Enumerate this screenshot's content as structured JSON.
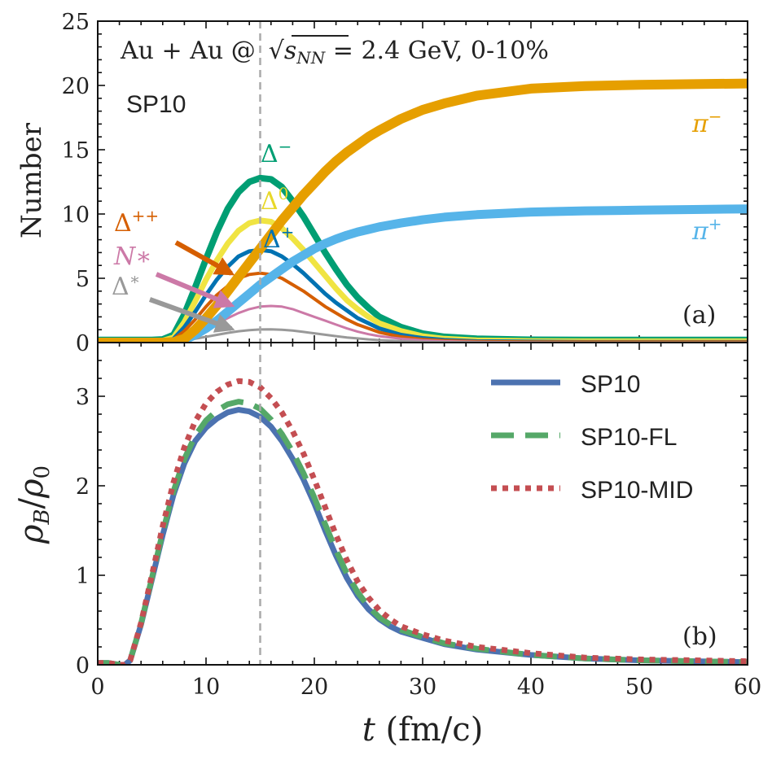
{
  "chart_data": [
    {
      "type": "line",
      "panel_label": "(a)",
      "title": "Au + Au @√sNN = 2.4 GeV, 0-10%",
      "title_lhs": "Au + Au @",
      "title_sqrt_var": "s",
      "title_sub": "NN",
      "title_rhs": " = 2.4 GeV, 0-10%",
      "model_label": "SP10",
      "xlabel": "",
      "ylabel": "Number",
      "xlim": [
        0,
        60
      ],
      "ylim": [
        0,
        25
      ],
      "x_ticks": [
        0,
        10,
        20,
        30,
        40,
        50,
        60
      ],
      "y_ticks": [
        0,
        5,
        10,
        15,
        20,
        25
      ],
      "y_tick_labels": [
        "0",
        "5",
        "10",
        "15",
        "20",
        "25"
      ],
      "vline_x": 15,
      "x": [
        0,
        2,
        4,
        5,
        6,
        7,
        8,
        9,
        10,
        11,
        12,
        13,
        14,
        15,
        16,
        17,
        18,
        19,
        20,
        21,
        22,
        23,
        24,
        25,
        26,
        28,
        30,
        32,
        35,
        40,
        45,
        50,
        55,
        60
      ],
      "series": [
        {
          "name": "Δ−",
          "label_main": "Δ",
          "label_sup": "−",
          "color": "#009e73",
          "width": 8,
          "values": [
            0.2,
            0.2,
            0.2,
            0.2,
            0.25,
            0.6,
            2.2,
            4.3,
            6.5,
            8.6,
            10.4,
            11.7,
            12.5,
            12.8,
            12.7,
            12.1,
            11.0,
            9.8,
            8.4,
            7.0,
            5.7,
            4.5,
            3.5,
            2.7,
            2.0,
            1.2,
            0.7,
            0.45,
            0.3,
            0.22,
            0.2,
            0.2,
            0.2,
            0.2
          ]
        },
        {
          "name": "Δ0",
          "label_main": "Δ",
          "label_sup": "0",
          "color": "#f0e442",
          "width": 7,
          "values": [
            0.1,
            0.1,
            0.1,
            0.1,
            0.15,
            0.4,
            1.6,
            3.2,
            4.9,
            6.4,
            7.7,
            8.7,
            9.3,
            9.5,
            9.4,
            8.9,
            8.1,
            7.2,
            6.2,
            5.2,
            4.2,
            3.3,
            2.6,
            2.0,
            1.5,
            0.9,
            0.5,
            0.3,
            0.18,
            0.12,
            0.1,
            0.1,
            0.1,
            0.1
          ]
        },
        {
          "name": "Δ+",
          "label_main": "Δ",
          "label_sup": "+",
          "color": "#0072b2",
          "width": 5,
          "values": [
            0.05,
            0.05,
            0.05,
            0.05,
            0.1,
            0.3,
            1.2,
            2.4,
            3.7,
            4.9,
            5.9,
            6.7,
            7.1,
            7.2,
            7.1,
            6.7,
            6.1,
            5.4,
            4.6,
            3.8,
            3.1,
            2.5,
            1.9,
            1.5,
            1.1,
            0.6,
            0.35,
            0.2,
            0.1,
            0.07,
            0.05,
            0.05,
            0.05,
            0.05
          ]
        },
        {
          "name": "Δ++",
          "label_main": "Δ",
          "label_sup": "++",
          "color": "#d55e00",
          "width": 4,
          "values": [
            0.05,
            0.05,
            0.05,
            0.05,
            0.08,
            0.25,
            0.9,
            1.8,
            2.8,
            3.7,
            4.4,
            5.0,
            5.3,
            5.4,
            5.3,
            5.0,
            4.5,
            4.0,
            3.4,
            2.8,
            2.3,
            1.8,
            1.4,
            1.1,
            0.8,
            0.45,
            0.25,
            0.15,
            0.08,
            0.05,
            0.05,
            0.05,
            0.05,
            0.05
          ]
        },
        {
          "name": "N*",
          "label_main": "N∗",
          "label_sup": "",
          "color": "#cc79a7",
          "width": 3,
          "values": [
            0,
            0,
            0,
            0,
            0.02,
            0.1,
            0.3,
            0.7,
            1.1,
            1.5,
            1.9,
            2.3,
            2.6,
            2.8,
            2.85,
            2.8,
            2.6,
            2.3,
            2.0,
            1.7,
            1.4,
            1.1,
            0.85,
            0.65,
            0.5,
            0.3,
            0.18,
            0.1,
            0.05,
            0.02,
            0,
            0,
            0,
            0
          ]
        },
        {
          "name": "Δ*",
          "label_main": "Δ",
          "label_sup": "∗",
          "color": "#999999",
          "width": 3,
          "values": [
            0,
            0,
            0,
            0,
            0.01,
            0.05,
            0.15,
            0.3,
            0.45,
            0.6,
            0.75,
            0.88,
            0.97,
            1.02,
            1.03,
            1.0,
            0.93,
            0.83,
            0.72,
            0.61,
            0.5,
            0.4,
            0.32,
            0.25,
            0.19,
            0.11,
            0.06,
            0.03,
            0.01,
            0,
            0,
            0,
            0,
            0
          ]
        },
        {
          "name": "π+",
          "label_main": "π",
          "label_sup": "+",
          "color": "#56b4e9",
          "width": 11,
          "values": [
            0,
            0,
            0,
            0,
            0,
            0.02,
            0.2,
            0.6,
            1.1,
            1.7,
            2.4,
            3.1,
            3.8,
            4.5,
            5.1,
            5.7,
            6.3,
            6.8,
            7.3,
            7.7,
            8.05,
            8.35,
            8.6,
            8.8,
            9.0,
            9.3,
            9.55,
            9.75,
            9.95,
            10.15,
            10.25,
            10.3,
            10.35,
            10.4
          ]
        },
        {
          "name": "π−",
          "label_main": "π",
          "label_sup": "−",
          "color": "#e69f00",
          "width": 12,
          "values": [
            0,
            0,
            0,
            0,
            0,
            0.03,
            0.3,
            1.0,
            1.9,
            2.9,
            4.0,
            5.1,
            6.2,
            7.3,
            8.4,
            9.5,
            10.5,
            11.5,
            12.4,
            13.3,
            14.1,
            14.8,
            15.4,
            16.0,
            16.5,
            17.4,
            18.1,
            18.6,
            19.2,
            19.75,
            19.95,
            20.05,
            20.1,
            20.15
          ]
        }
      ]
    },
    {
      "type": "line",
      "panel_label": "(b)",
      "xlabel": "t (fm/c)",
      "xlabel_var": "t",
      "xlabel_unit": " (fm/c)",
      "ylabel": "ρB/ρ0",
      "ylabel_rho": "ρ",
      "ylabel_sub1": "B",
      "ylabel_sub2": "0",
      "xlim": [
        0,
        60
      ],
      "ylim": [
        0,
        3.6
      ],
      "x_ticks": [
        0,
        10,
        20,
        30,
        40,
        50,
        60
      ],
      "y_ticks": [
        0,
        1,
        2,
        3
      ],
      "y_tick_labels": [
        "0",
        "1",
        "2",
        "3"
      ],
      "vline_x": 15,
      "x": [
        0,
        1,
        2,
        2.5,
        3,
        4,
        5,
        6,
        7,
        8,
        9,
        10,
        11,
        12,
        13,
        14,
        15,
        16,
        17,
        18,
        19,
        20,
        21,
        22,
        23,
        24,
        25,
        26,
        27,
        28,
        30,
        32,
        35,
        40,
        45,
        50,
        55,
        60
      ],
      "series": [
        {
          "name": "SP10",
          "color": "#4c72b0",
          "dash": "none",
          "width": 7,
          "values": [
            0.02,
            0.02,
            0.0,
            0.0,
            0.05,
            0.45,
            0.95,
            1.45,
            1.9,
            2.25,
            2.5,
            2.65,
            2.75,
            2.82,
            2.85,
            2.83,
            2.77,
            2.66,
            2.5,
            2.3,
            2.07,
            1.8,
            1.5,
            1.22,
            0.97,
            0.77,
            0.62,
            0.51,
            0.43,
            0.37,
            0.3,
            0.23,
            0.17,
            0.11,
            0.07,
            0.05,
            0.04,
            0.03
          ]
        },
        {
          "name": "SP10-FL",
          "color": "#55a868",
          "dash": "28 14",
          "width": 7,
          "values": [
            0.02,
            0.02,
            0.0,
            0.0,
            0.05,
            0.46,
            0.97,
            1.48,
            1.94,
            2.3,
            2.56,
            2.73,
            2.84,
            2.91,
            2.94,
            2.92,
            2.86,
            2.74,
            2.58,
            2.38,
            2.14,
            1.87,
            1.57,
            1.28,
            1.02,
            0.81,
            0.65,
            0.53,
            0.45,
            0.39,
            0.31,
            0.24,
            0.18,
            0.11,
            0.07,
            0.05,
            0.04,
            0.03
          ]
        },
        {
          "name": "SP10-MID",
          "color": "#c44e52",
          "dash": "7 7",
          "width": 7,
          "values": [
            0.02,
            0.02,
            0.0,
            0.0,
            0.05,
            0.47,
            1.0,
            1.55,
            2.04,
            2.43,
            2.72,
            2.92,
            3.05,
            3.13,
            3.17,
            3.16,
            3.1,
            2.98,
            2.82,
            2.61,
            2.36,
            2.07,
            1.76,
            1.45,
            1.17,
            0.93,
            0.75,
            0.61,
            0.51,
            0.43,
            0.34,
            0.27,
            0.2,
            0.13,
            0.08,
            0.06,
            0.05,
            0.04
          ]
        }
      ]
    }
  ]
}
